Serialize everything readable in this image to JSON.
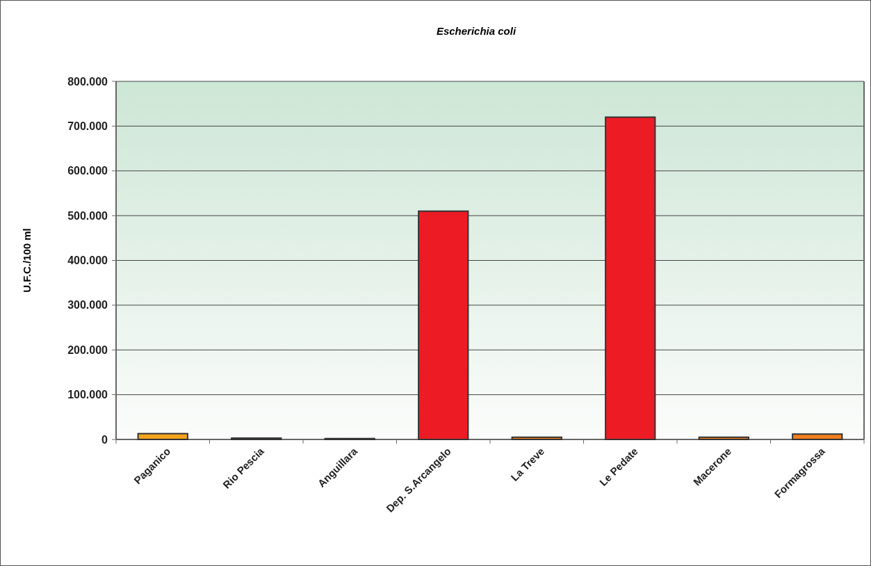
{
  "chart_data": {
    "type": "bar",
    "title": "Escherichia coli",
    "ylabel": "U.F.C./100 ml",
    "categories": [
      "Paganico",
      "Rio Pescia",
      "Anguillara",
      "Dep. S.Arcangelo",
      "La Treve",
      "Le Pedate",
      "Macerone",
      "Formagrossa"
    ],
    "values": [
      13000,
      3000,
      2000,
      510000,
      5000,
      720000,
      5000,
      12000
    ],
    "colors": [
      "#f5a31c",
      "#f5a31c",
      "#f5a31c",
      "#ed1c24",
      "#f07f1e",
      "#ed1c24",
      "#f07f1e",
      "#f07f1e"
    ],
    "ylim": [
      0,
      800000
    ],
    "yticks": [
      {
        "value": 0,
        "label": "0"
      },
      {
        "value": 100000,
        "label": "100.000"
      },
      {
        "value": 200000,
        "label": "200.000"
      },
      {
        "value": 300000,
        "label": "300.000"
      },
      {
        "value": 400000,
        "label": "400.000"
      },
      {
        "value": 500000,
        "label": "500.000"
      },
      {
        "value": 600000,
        "label": "600.000"
      },
      {
        "value": 700000,
        "label": "700.000"
      },
      {
        "value": 800000,
        "label": "800.000"
      }
    ],
    "grid": "y"
  }
}
